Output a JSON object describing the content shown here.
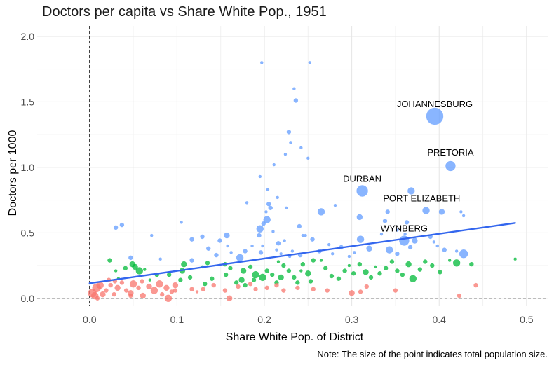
{
  "chart_data": {
    "type": "scatter",
    "title": "Doctors per capita vs Share White Pop., 1951",
    "xlabel": "Share White Pop. of District",
    "ylabel": "Doctors per 1000",
    "note": "Note: The size of the point indicates total population size.",
    "xlim": [
      -0.06,
      0.525
    ],
    "ylim": [
      -0.06,
      2.08
    ],
    "x_ticks": [
      "0.0",
      "0.1",
      "0.2",
      "0.3",
      "0.4",
      "0.5"
    ],
    "x_tick_values": [
      0.0,
      0.1,
      0.2,
      0.3,
      0.4,
      0.5
    ],
    "y_ticks": [
      "0.0",
      "0.5",
      "1.0",
      "1.5",
      "2.0"
    ],
    "y_tick_values": [
      0.0,
      0.5,
      1.0,
      1.5,
      2.0
    ],
    "grid": true,
    "reference_lines": {
      "x": 0,
      "y": 0,
      "style": "dashed"
    },
    "trend_line": {
      "x": [
        0.0,
        0.487
      ],
      "y": [
        0.115,
        0.575
      ],
      "color": "#3366ee"
    },
    "colors": {
      "blue": "#619cff",
      "green": "#00ba38",
      "red": "#f8766d"
    },
    "labels": [
      {
        "text": "JOHANNESBURG",
        "x": 0.395,
        "y": 1.46
      },
      {
        "text": "PRETORIA",
        "x": 0.413,
        "y": 1.09
      },
      {
        "text": "DURBAN",
        "x": 0.312,
        "y": 0.89
      },
      {
        "text": "PORT ELIZABETH",
        "x": 0.38,
        "y": 0.74
      },
      {
        "text": "WYNBERG",
        "x": 0.36,
        "y": 0.51
      }
    ],
    "series": [
      {
        "color_key": "blue",
        "points": [
          [
            0.395,
            1.39,
            12
          ],
          [
            0.413,
            1.01,
            7
          ],
          [
            0.312,
            0.82,
            8
          ],
          [
            0.385,
            0.67,
            5
          ],
          [
            0.36,
            0.44,
            7
          ],
          [
            0.197,
            1.8,
            2
          ],
          [
            0.252,
            1.8,
            2
          ],
          [
            0.234,
            1.6,
            2
          ],
          [
            0.236,
            1.51,
            3
          ],
          [
            0.228,
            1.27,
            3
          ],
          [
            0.23,
            1.19,
            2
          ],
          [
            0.242,
            1.15,
            2
          ],
          [
            0.224,
            1.1,
            2
          ],
          [
            0.25,
            1.07,
            2
          ],
          [
            0.211,
            1.02,
            2
          ],
          [
            0.195,
            0.93,
            2
          ],
          [
            0.204,
            0.83,
            2
          ],
          [
            0.368,
            0.82,
            5
          ],
          [
            0.18,
            0.73,
            2
          ],
          [
            0.205,
            0.72,
            3
          ],
          [
            0.225,
            0.69,
            2
          ],
          [
            0.207,
            0.69,
            3
          ],
          [
            0.265,
            0.66,
            5
          ],
          [
            0.403,
            0.66,
            4
          ],
          [
            0.341,
            0.66,
            3
          ],
          [
            0.425,
            0.66,
            2
          ],
          [
            0.203,
            0.6,
            5
          ],
          [
            0.199,
            0.57,
            3
          ],
          [
            0.105,
            0.58,
            2
          ],
          [
            0.03,
            0.54,
            3
          ],
          [
            0.037,
            0.56,
            3
          ],
          [
            0.071,
            0.48,
            2
          ],
          [
            0.117,
            0.45,
            3
          ],
          [
            0.129,
            0.47,
            3
          ],
          [
            0.149,
            0.44,
            3
          ],
          [
            0.157,
            0.48,
            4
          ],
          [
            0.309,
            0.62,
            4
          ],
          [
            0.338,
            0.59,
            3
          ],
          [
            0.363,
            0.58,
            3
          ],
          [
            0.24,
            0.55,
            3
          ],
          [
            0.21,
            0.51,
            2
          ],
          [
            0.195,
            0.53,
            5
          ],
          [
            0.194,
            0.48,
            3
          ],
          [
            0.216,
            0.42,
            3
          ],
          [
            0.232,
            0.36,
            2
          ],
          [
            0.247,
            0.48,
            2
          ],
          [
            0.255,
            0.45,
            3
          ],
          [
            0.223,
            0.44,
            2
          ],
          [
            0.274,
            0.41,
            2
          ],
          [
            0.178,
            0.36,
            3
          ],
          [
            0.172,
            0.31,
            5
          ],
          [
            0.196,
            0.35,
            3
          ],
          [
            0.229,
            0.32,
            2
          ],
          [
            0.214,
            0.37,
            2
          ],
          [
            0.263,
            0.36,
            3
          ],
          [
            0.288,
            0.39,
            3
          ],
          [
            0.31,
            0.45,
            5
          ],
          [
            0.32,
            0.38,
            4
          ],
          [
            0.343,
            0.37,
            5
          ],
          [
            0.352,
            0.34,
            3
          ],
          [
            0.372,
            0.44,
            4
          ],
          [
            0.398,
            0.4,
            2
          ],
          [
            0.406,
            0.37,
            3
          ],
          [
            0.42,
            0.36,
            2
          ],
          [
            0.428,
            0.34,
            6
          ],
          [
            0.367,
            0.39,
            3
          ],
          [
            0.334,
            0.49,
            2
          ],
          [
            0.352,
            0.52,
            2
          ],
          [
            0.361,
            0.49,
            2
          ],
          [
            0.39,
            0.47,
            3
          ],
          [
            0.394,
            0.43,
            2
          ],
          [
            0.428,
            0.63,
            2
          ],
          [
            0.303,
            0.35,
            2
          ],
          [
            0.278,
            0.34,
            2
          ],
          [
            0.297,
            0.32,
            2
          ],
          [
            0.241,
            0.33,
            3
          ],
          [
            0.219,
            0.34,
            2
          ],
          [
            0.047,
            0.31,
            3
          ],
          [
            0.117,
            0.29,
            3
          ],
          [
            0.145,
            0.33,
            3
          ],
          [
            0.081,
            0.3,
            2
          ],
          [
            0.162,
            0.35,
            2
          ],
          [
            0.186,
            0.4,
            2
          ],
          [
            0.158,
            0.4,
            2
          ],
          [
            0.136,
            0.38,
            3
          ],
          [
            0.198,
            0.4,
            2
          ],
          [
            0.202,
            0.66,
            2
          ],
          [
            0.215,
            0.77,
            2
          ],
          [
            0.281,
            0.71,
            2
          ],
          [
            0.244,
            0.48,
            2
          ]
        ]
      },
      {
        "color_key": "green",
        "points": [
          [
            0.049,
            0.26,
            4
          ],
          [
            0.057,
            0.21,
            5
          ],
          [
            0.052,
            0.24,
            4
          ],
          [
            0.041,
            0.23,
            3
          ],
          [
            0.03,
            0.21,
            2
          ],
          [
            0.023,
            0.29,
            3
          ],
          [
            0.077,
            0.18,
            3
          ],
          [
            0.091,
            0.18,
            3
          ],
          [
            0.106,
            0.21,
            4
          ],
          [
            0.108,
            0.26,
            4
          ],
          [
            0.104,
            0.14,
            3
          ],
          [
            0.135,
            0.27,
            3
          ],
          [
            0.129,
            0.24,
            2
          ],
          [
            0.132,
            0.11,
            3
          ],
          [
            0.155,
            0.26,
            3
          ],
          [
            0.161,
            0.23,
            3
          ],
          [
            0.156,
            0.18,
            3
          ],
          [
            0.176,
            0.21,
            4
          ],
          [
            0.184,
            0.24,
            3
          ],
          [
            0.19,
            0.18,
            5
          ],
          [
            0.174,
            0.14,
            4
          ],
          [
            0.178,
            0.1,
            3
          ],
          [
            0.198,
            0.16,
            5
          ],
          [
            0.203,
            0.21,
            3
          ],
          [
            0.209,
            0.18,
            3
          ],
          [
            0.214,
            0.12,
            3
          ],
          [
            0.219,
            0.16,
            4
          ],
          [
            0.222,
            0.25,
            3
          ],
          [
            0.228,
            0.21,
            3
          ],
          [
            0.234,
            0.16,
            3
          ],
          [
            0.238,
            0.12,
            3
          ],
          [
            0.244,
            0.26,
            3
          ],
          [
            0.25,
            0.19,
            4
          ],
          [
            0.253,
            0.13,
            3
          ],
          [
            0.27,
            0.23,
            3
          ],
          [
            0.277,
            0.17,
            3
          ],
          [
            0.285,
            0.15,
            3
          ],
          [
            0.292,
            0.21,
            3
          ],
          [
            0.302,
            0.19,
            3
          ],
          [
            0.309,
            0.26,
            3
          ],
          [
            0.316,
            0.2,
            4
          ],
          [
            0.322,
            0.16,
            3
          ],
          [
            0.332,
            0.19,
            3
          ],
          [
            0.339,
            0.23,
            3
          ],
          [
            0.346,
            0.28,
            3
          ],
          [
            0.352,
            0.21,
            3
          ],
          [
            0.358,
            0.18,
            3
          ],
          [
            0.365,
            0.26,
            4
          ],
          [
            0.37,
            0.15,
            5
          ],
          [
            0.378,
            0.22,
            3
          ],
          [
            0.384,
            0.28,
            3
          ],
          [
            0.392,
            0.25,
            3
          ],
          [
            0.401,
            0.2,
            3
          ],
          [
            0.412,
            0.29,
            2
          ],
          [
            0.42,
            0.27,
            5
          ],
          [
            0.437,
            0.26,
            3
          ],
          [
            0.487,
            0.3,
            2
          ],
          [
            0.14,
            0.15,
            3
          ],
          [
            0.168,
            0.12,
            3
          ],
          [
            0.188,
            0.14,
            3
          ],
          [
            0.242,
            0.21,
            2
          ],
          [
            0.265,
            0.29,
            2
          ],
          [
            0.297,
            0.25,
            2
          ],
          [
            0.327,
            0.24,
            2
          ],
          [
            0.069,
            0.14,
            2
          ],
          [
            0.216,
            0.28,
            2
          ],
          [
            0.256,
            0.29,
            3
          ],
          [
            0.115,
            0.16,
            3
          ],
          [
            0.033,
            0.15,
            2
          ],
          [
            0.063,
            0.22,
            2
          ]
        ]
      },
      {
        "color_key": "red",
        "points": [
          [
            0.003,
            0.04,
            6
          ],
          [
            0.008,
            0.08,
            6
          ],
          [
            0.012,
            0.1,
            5
          ],
          [
            0.006,
            0.02,
            5
          ],
          [
            0.015,
            0.03,
            4
          ],
          [
            0.019,
            0.06,
            3
          ],
          [
            0.024,
            0.1,
            3
          ],
          [
            0.028,
            0.03,
            3
          ],
          [
            0.032,
            0.08,
            4
          ],
          [
            0.037,
            0.12,
            3
          ],
          [
            0.042,
            0.06,
            3
          ],
          [
            0.047,
            0.04,
            4
          ],
          [
            0.05,
            0.11,
            5
          ],
          [
            0.056,
            0.08,
            3
          ],
          [
            0.061,
            0.02,
            4
          ],
          [
            0.068,
            0.09,
            4
          ],
          [
            0.074,
            0.06,
            5
          ],
          [
            0.08,
            0.11,
            5
          ],
          [
            0.088,
            0.08,
            4
          ],
          [
            0.094,
            0.05,
            3
          ],
          [
            0.098,
            0.1,
            4
          ],
          [
            0.09,
            0.0,
            5
          ],
          [
            0.06,
            0.13,
            3
          ],
          [
            0.022,
            0.14,
            3
          ],
          [
            0.117,
            0.07,
            3
          ],
          [
            0.13,
            0.07,
            3
          ],
          [
            0.142,
            0.1,
            3
          ],
          [
            0.16,
            0.0,
            4
          ],
          [
            0.155,
            0.06,
            3
          ],
          [
            0.17,
            0.09,
            3
          ],
          [
            0.184,
            0.11,
            3
          ],
          [
            0.19,
            0.07,
            3
          ],
          [
            0.203,
            0.08,
            3
          ],
          [
            0.214,
            0.1,
            3
          ],
          [
            0.222,
            0.06,
            3
          ],
          [
            0.238,
            0.08,
            3
          ],
          [
            0.256,
            0.07,
            3
          ],
          [
            0.272,
            0.06,
            3
          ],
          [
            0.3,
            0.04,
            4
          ],
          [
            0.31,
            0.05,
            3
          ],
          [
            0.317,
            0.09,
            3
          ],
          [
            0.35,
            0.06,
            3
          ],
          [
            0.423,
            0.02,
            3
          ],
          [
            0.442,
            0.1,
            3
          ],
          [
            0.047,
            0.02,
            3
          ],
          [
            0.009,
            0.0,
            3
          ],
          [
            0.029,
            0.13,
            3
          ],
          [
            0.123,
            0.05,
            2
          ],
          [
            0.083,
            0.03,
            3
          ],
          [
            0.098,
            0.06,
            3
          ]
        ]
      }
    ]
  }
}
